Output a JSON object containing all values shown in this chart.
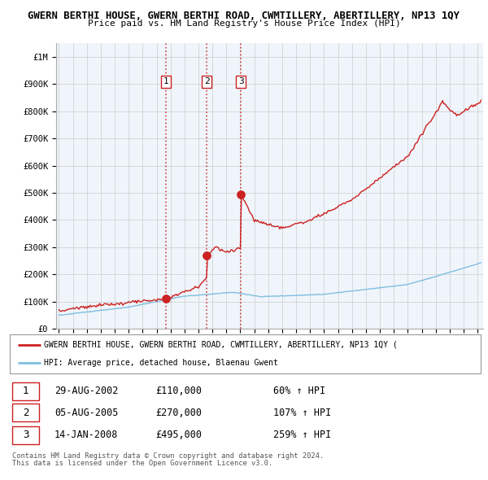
{
  "title_line1": "GWERN BERTHI HOUSE, GWERN BERTHI ROAD, CWMTILLERY, ABERTILLERY, NP13 1QY",
  "title_line2": "Price paid vs. HM Land Registry's House Price Index (HPI)",
  "hpi_color": "#7fbfdf",
  "price_color": "#cc2222",
  "vline_color": "#cc2222",
  "sale_dates": [
    2002.66,
    2005.59,
    2008.04
  ],
  "sale_prices": [
    110000,
    270000,
    495000
  ],
  "sale_labels": [
    "1",
    "2",
    "3"
  ],
  "sale_info": [
    [
      "1",
      "29-AUG-2002",
      "£110,000",
      "60% ↑ HPI"
    ],
    [
      "2",
      "05-AUG-2005",
      "£270,000",
      "107% ↑ HPI"
    ],
    [
      "3",
      "14-JAN-2008",
      "£495,000",
      "259% ↑ HPI"
    ]
  ],
  "legend_line1": "GWERN BERTHI HOUSE, GWERN BERTHI ROAD, CWMTILLERY, ABERTILLERY, NP13 1QY (",
  "legend_line2": "HPI: Average price, detached house, Blaenau Gwent",
  "footer_line1": "Contains HM Land Registry data © Crown copyright and database right 2024.",
  "footer_line2": "This data is licensed under the Open Government Licence v3.0.",
  "yticks": [
    0,
    100000,
    200000,
    300000,
    400000,
    500000,
    600000,
    700000,
    800000,
    900000,
    1000000
  ],
  "ytick_labels": [
    "£0",
    "£100K",
    "£200K",
    "£300K",
    "£400K",
    "£500K",
    "£600K",
    "£700K",
    "£800K",
    "£900K",
    "£1M"
  ],
  "xlim_start": 1994.8,
  "xlim_end": 2025.4,
  "ylim_min": 0,
  "ylim_max": 1050000
}
